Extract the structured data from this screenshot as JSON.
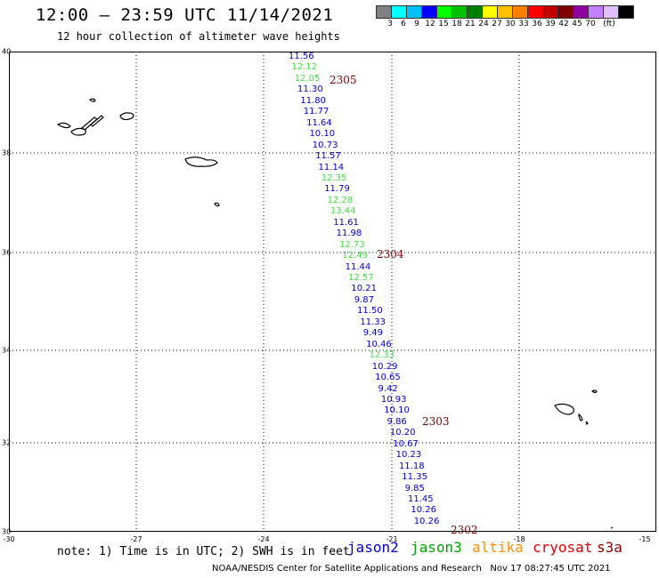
{
  "header": {
    "title": "12:00 – 23:59 UTC 11/14/2021",
    "subtitle": "12 hour collection of altimeter wave heights"
  },
  "scale": {
    "unit": "(ft)",
    "levels": [
      "3",
      "6",
      "9",
      "12",
      "15",
      "18",
      "21",
      "24",
      "27",
      "30",
      "33",
      "36",
      "39",
      "42",
      "45",
      "70"
    ],
    "colors": [
      "#808080",
      "#00ffff",
      "#00c0ff",
      "#0000ff",
      "#00ff00",
      "#00c000",
      "#008000",
      "#ffff00",
      "#ffc000",
      "#ff8000",
      "#ff0000",
      "#c00000",
      "#800000",
      "#9000a0",
      "#c080ff",
      "#e0c0ff",
      "#000000"
    ]
  },
  "map": {
    "lon_labels": [
      "-30",
      "-27",
      "-24",
      "-21",
      "-18",
      "-15"
    ],
    "lat_labels": [
      "40",
      "38",
      "36",
      "34",
      "32",
      "30"
    ],
    "passes": [
      "2305",
      "2304",
      "2303",
      "2302"
    ],
    "observations": [
      {
        "v": "11.56",
        "sat": "jason2"
      },
      {
        "v": "12.12",
        "sat": "jason3"
      },
      {
        "v": "12.05",
        "sat": "jason3"
      },
      {
        "v": "11.30",
        "sat": "jason2"
      },
      {
        "v": "11.80",
        "sat": "jason2"
      },
      {
        "v": "11.77",
        "sat": "jason2"
      },
      {
        "v": "11.64",
        "sat": "jason2"
      },
      {
        "v": "10.10",
        "sat": "jason2"
      },
      {
        "v": "10.73",
        "sat": "jason2"
      },
      {
        "v": "11.57",
        "sat": "jason2"
      },
      {
        "v": "11.14",
        "sat": "jason2"
      },
      {
        "v": "12.35",
        "sat": "jason3"
      },
      {
        "v": "11.79",
        "sat": "jason2"
      },
      {
        "v": "12.28",
        "sat": "jason3"
      },
      {
        "v": "13.44",
        "sat": "jason3"
      },
      {
        "v": "11.61",
        "sat": "jason2"
      },
      {
        "v": "11.98",
        "sat": "jason2"
      },
      {
        "v": "12.73",
        "sat": "jason3"
      },
      {
        "v": "12.49",
        "sat": "jason3"
      },
      {
        "v": "11.44",
        "sat": "jason2"
      },
      {
        "v": "12.57",
        "sat": "jason3"
      },
      {
        "v": "10.21",
        "sat": "jason2"
      },
      {
        "v": "9.87",
        "sat": "jason2"
      },
      {
        "v": "11.50",
        "sat": "jason2"
      },
      {
        "v": "11.33",
        "sat": "jason2"
      },
      {
        "v": "9.49",
        "sat": "jason2"
      },
      {
        "v": "10.46",
        "sat": "jason2"
      },
      {
        "v": "12.33",
        "sat": "jason3"
      },
      {
        "v": "10.29",
        "sat": "jason2"
      },
      {
        "v": "10.65",
        "sat": "jason2"
      },
      {
        "v": "9.42",
        "sat": "jason2"
      },
      {
        "v": "10.93",
        "sat": "jason2"
      },
      {
        "v": "10.10",
        "sat": "jason2"
      },
      {
        "v": "9.86",
        "sat": "jason2"
      },
      {
        "v": "10.20",
        "sat": "jason2"
      },
      {
        "v": "10.67",
        "sat": "jason2"
      },
      {
        "v": "10.23",
        "sat": "jason2"
      },
      {
        "v": "11.18",
        "sat": "jason2"
      },
      {
        "v": "11.35",
        "sat": "jason2"
      },
      {
        "v": "9.85",
        "sat": "jason2"
      },
      {
        "v": "11.45",
        "sat": "jason2"
      },
      {
        "v": "10.26",
        "sat": "jason2"
      },
      {
        "v": "10.26",
        "sat": "jason2"
      }
    ]
  },
  "legend": {
    "note": "note: 1) Time is in UTC; 2) SWH is in feet",
    "satellites": [
      {
        "name": "jason2",
        "color": "#0000cc"
      },
      {
        "name": "jason3",
        "color": "#00a000"
      },
      {
        "name": "altika",
        "color": "#ff9000"
      },
      {
        "name": "cryosat",
        "color": "#e00000"
      },
      {
        "name": "s3a",
        "color": "#8b0000"
      }
    ]
  },
  "footer": {
    "credit": "NOAA/NESDIS Center for Satellite Applications and Research",
    "timestamp": "Nov 17 08:27:45 UTC 2021"
  }
}
